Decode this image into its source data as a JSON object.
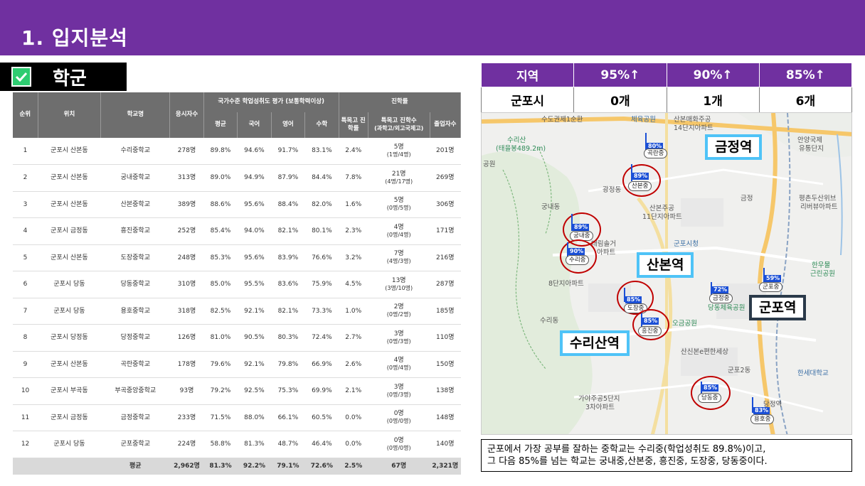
{
  "header": {
    "title": "1. 입지분석"
  },
  "section": {
    "label": "학군"
  },
  "school_table": {
    "header_rank": "순위",
    "header_location": "위치",
    "header_school": "학교명",
    "header_examinees": "응시자수",
    "header_national": "국가수준 학업성취도 평가 (보통학력이상)",
    "header_avg": "평균",
    "header_korean": "국어",
    "header_english": "영어",
    "header_math": "수학",
    "header_advance": "진학률",
    "header_special_rate": "특목고 진학률",
    "header_special_count": "특목고 진학수",
    "header_special_count_sub": "(과학고/외고국제고)",
    "header_graduates": "졸업자수",
    "rows": [
      {
        "rank": "1",
        "loc": "군포시 산본동",
        "school": "수리중학교",
        "exam": "278명",
        "avg": "89.8%",
        "kor": "94.6%",
        "eng": "91.7%",
        "math": "83.1%",
        "rate": "2.4%",
        "cnt": "5명",
        "cnt_sub": "(1명/4명)",
        "grad": "201명"
      },
      {
        "rank": "2",
        "loc": "군포시 산본동",
        "school": "궁내중학교",
        "exam": "313명",
        "avg": "89.0%",
        "kor": "94.9%",
        "eng": "87.9%",
        "math": "84.4%",
        "rate": "7.8%",
        "cnt": "21명",
        "cnt_sub": "(4명/17명)",
        "grad": "269명"
      },
      {
        "rank": "3",
        "loc": "군포시 산본동",
        "school": "산본중학교",
        "exam": "389명",
        "avg": "88.6%",
        "kor": "95.6%",
        "eng": "88.4%",
        "math": "82.0%",
        "rate": "1.6%",
        "cnt": "5명",
        "cnt_sub": "(0명/5명)",
        "grad": "306명"
      },
      {
        "rank": "4",
        "loc": "군포시 금정동",
        "school": "흥진중학교",
        "exam": "252명",
        "avg": "85.4%",
        "kor": "94.0%",
        "eng": "82.1%",
        "math": "80.1%",
        "rate": "2.3%",
        "cnt": "4명",
        "cnt_sub": "(0명/4명)",
        "grad": "171명"
      },
      {
        "rank": "5",
        "loc": "군포시 산본동",
        "school": "도장중학교",
        "exam": "248명",
        "avg": "85.3%",
        "kor": "95.6%",
        "eng": "83.9%",
        "math": "76.6%",
        "rate": "3.2%",
        "cnt": "7명",
        "cnt_sub": "(4명/3명)",
        "grad": "216명"
      },
      {
        "rank": "6",
        "loc": "군포시 당동",
        "school": "당동중학교",
        "exam": "310명",
        "avg": "85.0%",
        "kor": "95.5%",
        "eng": "83.6%",
        "math": "75.9%",
        "rate": "4.5%",
        "cnt": "13명",
        "cnt_sub": "(3명/10명)",
        "grad": "287명"
      },
      {
        "rank": "7",
        "loc": "군포시 당동",
        "school": "용호중학교",
        "exam": "318명",
        "avg": "82.5%",
        "kor": "92.1%",
        "eng": "82.1%",
        "math": "73.3%",
        "rate": "1.0%",
        "cnt": "2명",
        "cnt_sub": "(0명/2명)",
        "grad": "185명"
      },
      {
        "rank": "8",
        "loc": "군포시 당정동",
        "school": "당정중학교",
        "exam": "126명",
        "avg": "81.0%",
        "kor": "90.5%",
        "eng": "80.3%",
        "math": "72.4%",
        "rate": "2.7%",
        "cnt": "3명",
        "cnt_sub": "(0명/3명)",
        "grad": "110명"
      },
      {
        "rank": "9",
        "loc": "군포시 산본동",
        "school": "곡란중학교",
        "exam": "178명",
        "avg": "79.6%",
        "kor": "92.1%",
        "eng": "79.8%",
        "math": "66.9%",
        "rate": "2.6%",
        "cnt": "4명",
        "cnt_sub": "(0명/4명)",
        "grad": "150명"
      },
      {
        "rank": "10",
        "loc": "군포시 부곡동",
        "school": "부곡중앙중학교",
        "exam": "93명",
        "avg": "79.2%",
        "kor": "92.5%",
        "eng": "75.3%",
        "math": "69.9%",
        "rate": "2.1%",
        "cnt": "3명",
        "cnt_sub": "(0명/3명)",
        "grad": "138명"
      },
      {
        "rank": "11",
        "loc": "군포시 금정동",
        "school": "금정중학교",
        "exam": "233명",
        "avg": "71.5%",
        "kor": "88.0%",
        "eng": "66.1%",
        "math": "60.5%",
        "rate": "0.0%",
        "cnt": "0명",
        "cnt_sub": "(0명/0명)",
        "grad": "148명"
      },
      {
        "rank": "12",
        "loc": "군포시 당동",
        "school": "군포중학교",
        "exam": "224명",
        "avg": "58.8%",
        "kor": "81.3%",
        "eng": "48.7%",
        "math": "46.4%",
        "rate": "0.0%",
        "cnt": "0명",
        "cnt_sub": "(0명/0명)",
        "grad": "140명"
      }
    ],
    "footer": {
      "label": "평균",
      "exam": "2,962명",
      "avg": "81.3%",
      "kor": "92.2%",
      "eng": "79.1%",
      "math": "72.6%",
      "rate": "2.5%",
      "cnt": "67명",
      "grad": "2,321명"
    }
  },
  "stats": {
    "h_region": "지역",
    "h_95": "95%↑",
    "h_90": "90%↑",
    "h_85": "85%↑",
    "region": "군포시",
    "v_95": "0개",
    "v_90": "1개",
    "v_85": "6개"
  },
  "map": {
    "stations": {
      "geumjeong": "금정역",
      "sanbon": "산본역",
      "gunpo": "군포역",
      "surisan": "수리산역"
    },
    "labels": {
      "l1": "수도권제1순환",
      "l2": "체육공원",
      "l3": "산본매화주공",
      "l4": "14단지아파트",
      "l5": "수리산",
      "l6": "(태을봉489.2m)",
      "l7": "광정동",
      "l8": "궁내동",
      "l9": "산본주공",
      "l10": "11단지아파트",
      "l11": "대림솔거",
      "l12": "아파트",
      "l13": "군포시청",
      "l14": "8단지아파트",
      "l15": "수리동",
      "l16": "당동체육공원",
      "l17": "오금공원",
      "l18": "산신본e편한세상",
      "l19": "군포2동",
      "l20": "한세대학교",
      "l21": "가야주공5단지",
      "l22": "3차아파트",
      "l23": "안양국제",
      "l24": "유통단지",
      "l25": "평촌두산위브",
      "l26": "리버뷰아파트",
      "l27": "한우물",
      "l28": "근린공원",
      "l29": "당정역",
      "l30": "금정",
      "l31": "공원"
    },
    "markers": {
      "m1_pct": "80%",
      "m1_name": "곡란중",
      "m2_pct": "89%",
      "m2_name": "산본중",
      "m3_pct": "89%",
      "m3_name": "궁내중",
      "m4_pct": "90%",
      "m4_name": "수리중",
      "m5_pct": "85%",
      "m5_name": "도장중",
      "m6_pct": "85%",
      "m6_name": "흥진중",
      "m7_pct": "85%",
      "m7_name": "당동중",
      "m8_pct": "72%",
      "m8_name": "금정중",
      "m9_pct": "59%",
      "m9_name": "군포중",
      "m10_pct": "83%",
      "m10_name": "용호중"
    }
  },
  "note": {
    "line1": "군포에서 가장 공부를 잘하는 중학교는 수리중(학업성취도 89.8%)이고,",
    "line2": "그 다음 85%를 넘는 학교는 궁내중,산본중, 흥진중, 도장중, 당동중이다."
  },
  "colors": {
    "header_bg": "#7030a0",
    "table_header_bg": "#6e6e6e",
    "ring": "#c00000",
    "flag": "#1a4fd6",
    "station_border": "#4fc3f7"
  }
}
